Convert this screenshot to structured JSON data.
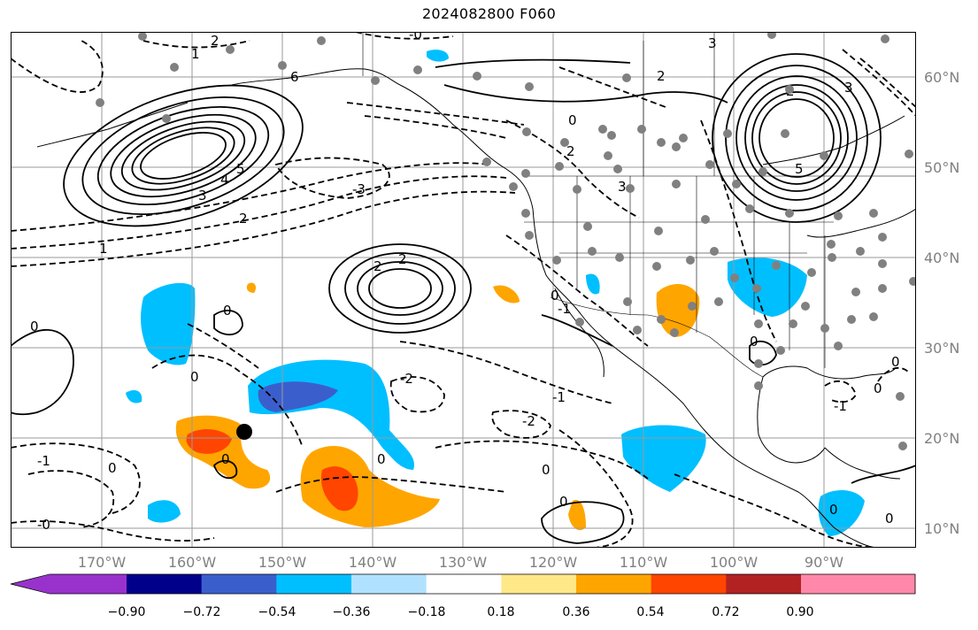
{
  "title": "2024082800 F060",
  "lat_labels": [
    "60°N",
    "50°N",
    "40°N",
    "30°N",
    "20°N",
    "10°N"
  ],
  "lon_labels": [
    "170°W",
    "160°W",
    "150°W",
    "140°W",
    "130°W",
    "120°W",
    "110°W",
    "100°W",
    "90°W"
  ],
  "colorbar": {
    "ticks": [
      "−0.90",
      "−0.72",
      "−0.54",
      "−0.36",
      "−0.18",
      "0.18",
      "0.36",
      "0.54",
      "0.72",
      "0.90"
    ],
    "colors": [
      "#9932cc",
      "#00008b",
      "#3a5fcd",
      "#00bfff",
      "#b0e2ff",
      "#ffffff",
      "#ffe888",
      "#ffa500",
      "#ff4500",
      "#b22222",
      "#ff88aa"
    ]
  },
  "contour_labels": [
    "2",
    "1",
    "6",
    "3",
    "4",
    "5",
    "2",
    "1",
    "3",
    "0",
    "2",
    "3",
    "2",
    "3",
    "5",
    "-3",
    "-2",
    "-1",
    "0",
    "2",
    "3",
    "2",
    "-2",
    "-1",
    "2",
    "1",
    "0",
    "-2",
    "0",
    "-1",
    "-2",
    "0",
    "0",
    "-1",
    "0",
    "1",
    "-1",
    "0",
    "0",
    "-1",
    "0",
    "0",
    "0"
  ],
  "station_count": "many"
}
